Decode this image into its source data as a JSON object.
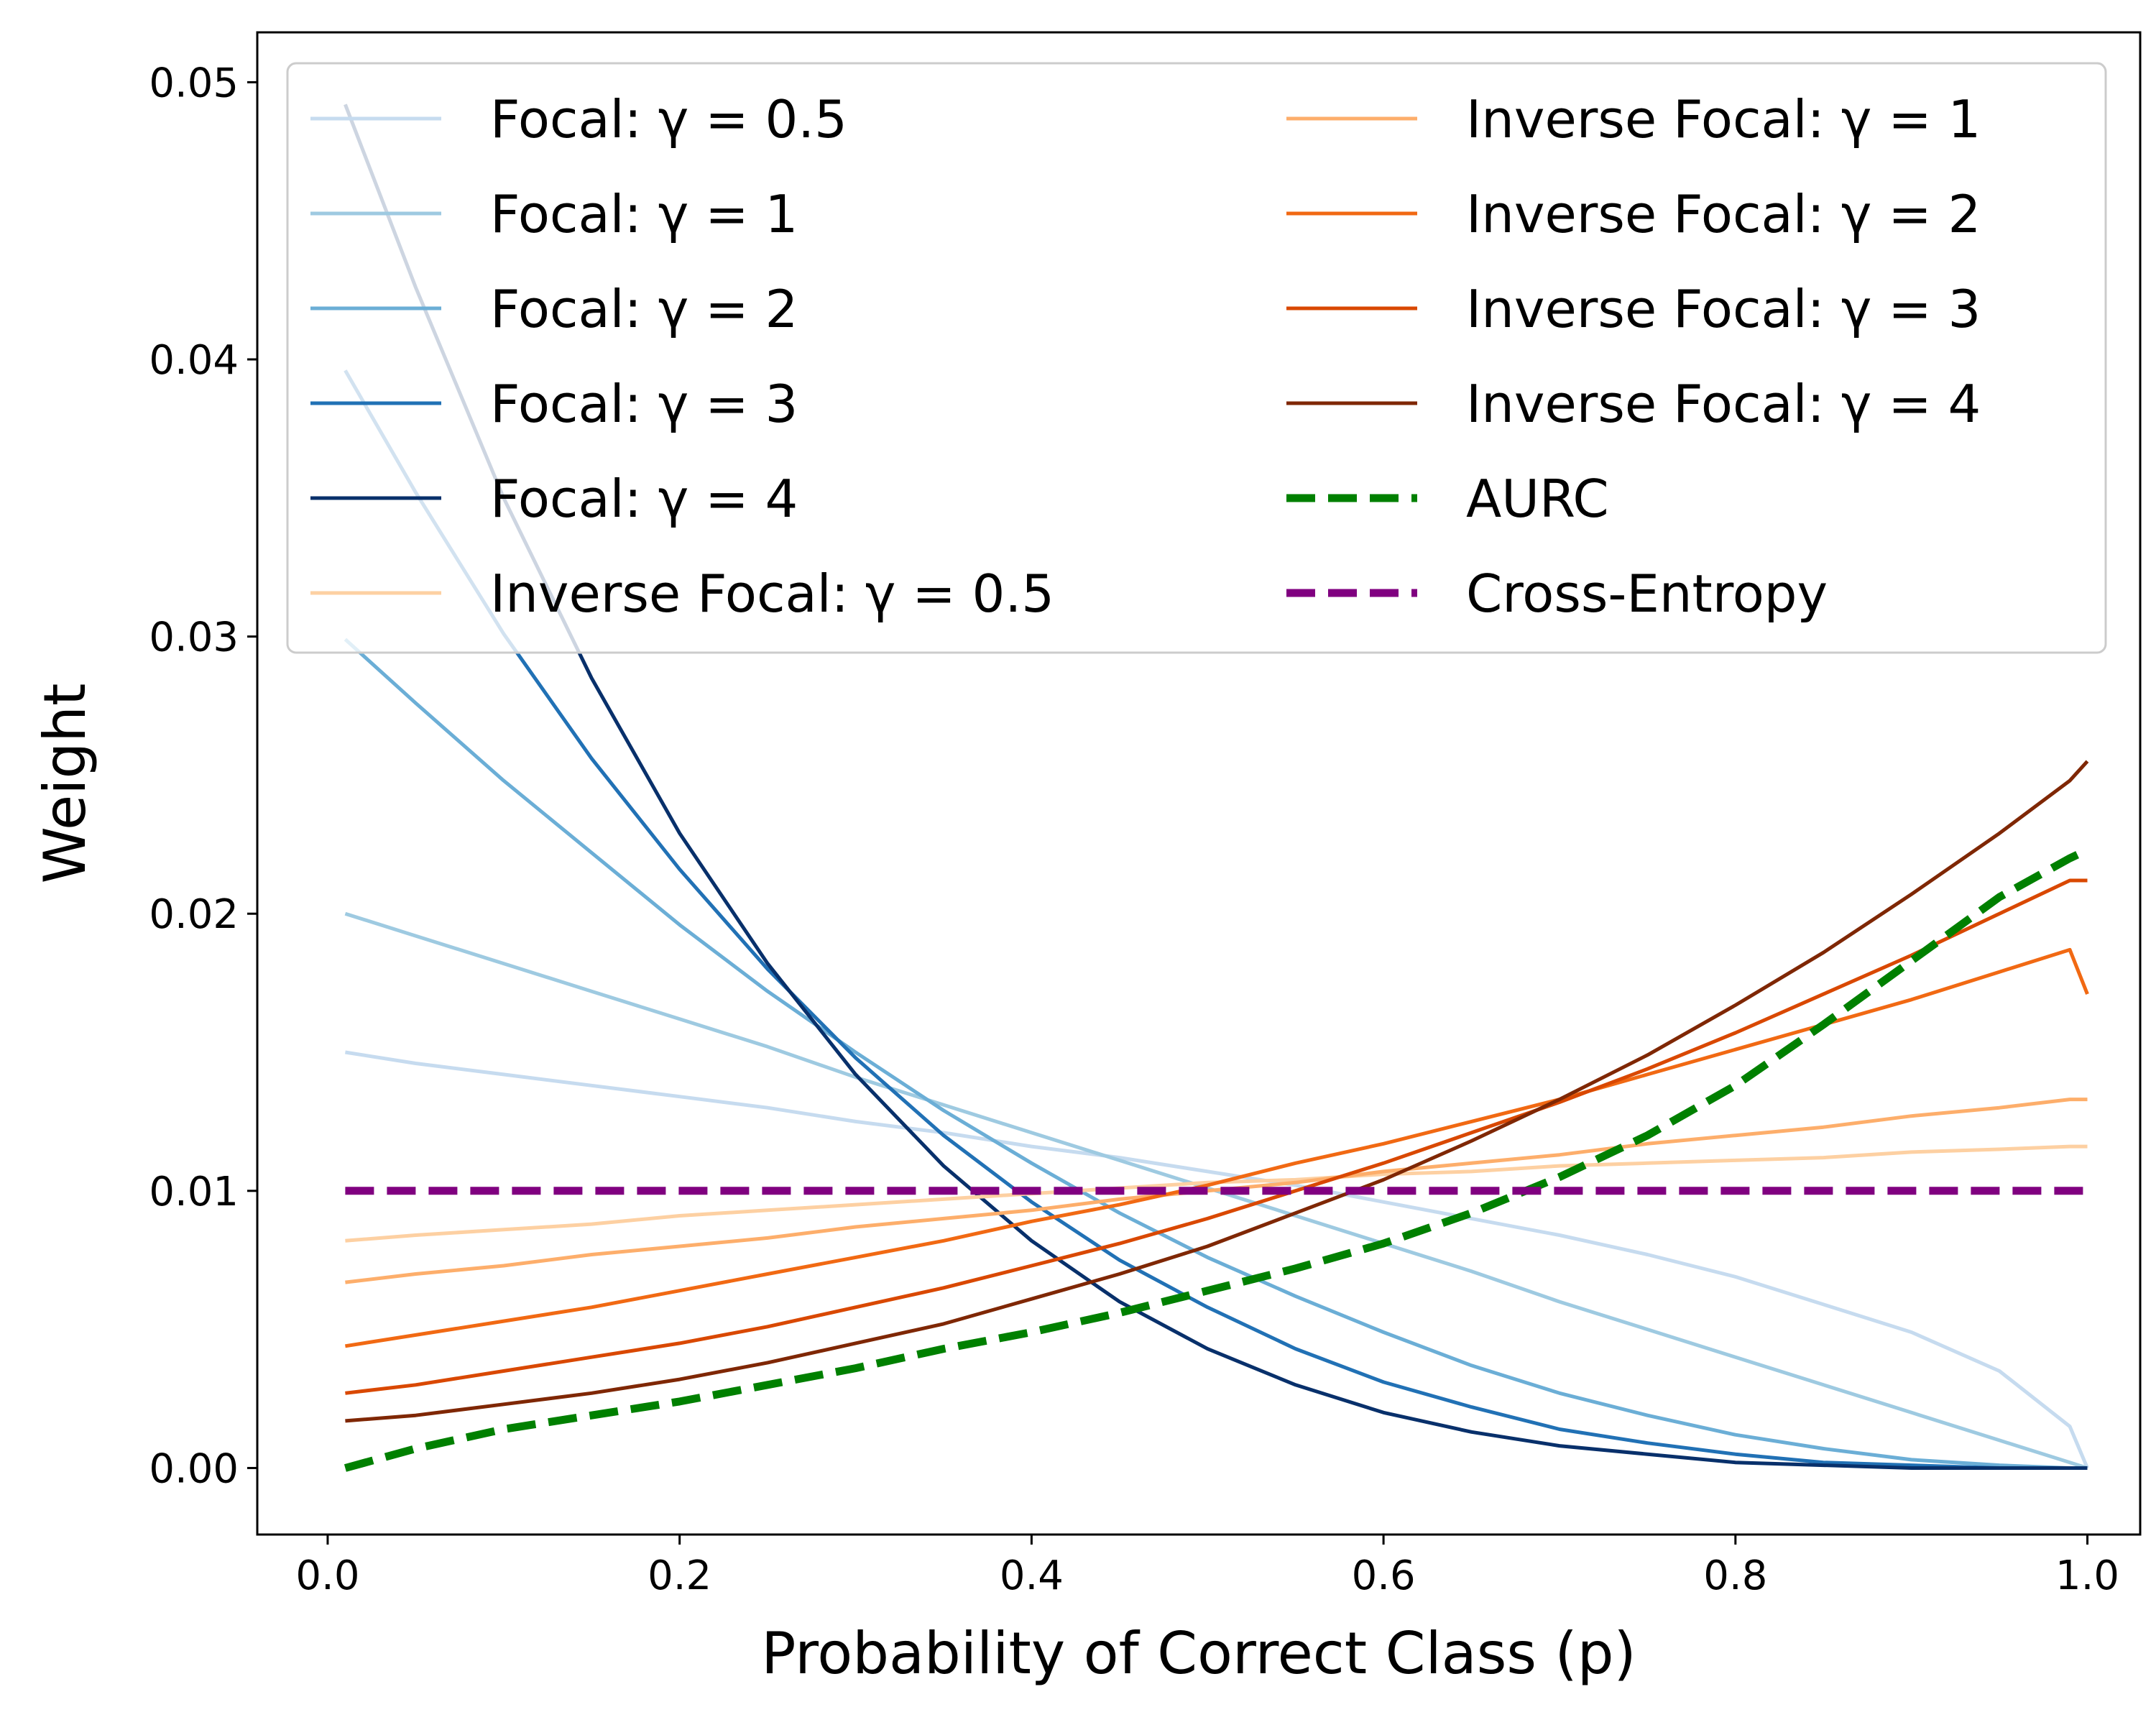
{
  "chart_data": {
    "type": "line",
    "title": "",
    "xlabel": "Probability of Correct Class (p)",
    "ylabel": "Weight",
    "xlim": [
      -0.04,
      1.03
    ],
    "ylim": [
      -0.0024,
      0.0518
    ],
    "x": [
      0.01,
      0.05,
      0.1,
      0.15,
      0.2,
      0.25,
      0.3,
      0.35,
      0.4,
      0.45,
      0.5,
      0.55,
      0.6,
      0.65,
      0.7,
      0.75,
      0.8,
      0.85,
      0.9,
      0.95,
      0.99,
      1.0
    ],
    "xticks": [
      0.0,
      0.2,
      0.4,
      0.6,
      0.8,
      1.0
    ],
    "xtick_labels": [
      "0.0",
      "0.2",
      "0.4",
      "0.6",
      "0.8",
      "1.0"
    ],
    "yticks": [
      0.0,
      0.01,
      0.02,
      0.03,
      0.04,
      0.05
    ],
    "ytick_labels": [
      "0.00",
      "0.01",
      "0.02",
      "0.03",
      "0.04",
      "0.05"
    ],
    "grid": false,
    "legend_position": "top",
    "series": [
      {
        "name": "Focal: γ = 0.5",
        "color": "#c6dbef",
        "dashed": false,
        "values": [
          0.015,
          0.0146,
          0.0142,
          0.0138,
          0.0134,
          0.013,
          0.0125,
          0.0121,
          0.0116,
          0.0112,
          0.0107,
          0.0102,
          0.0096,
          0.009,
          0.0084,
          0.0077,
          0.0069,
          0.0059,
          0.0049,
          0.0035,
          0.0015,
          0.0
        ]
      },
      {
        "name": "Focal: γ = 1",
        "color": "#9ecae1",
        "dashed": false,
        "values": [
          0.02,
          0.0192,
          0.0182,
          0.0172,
          0.0162,
          0.0152,
          0.0141,
          0.0131,
          0.0121,
          0.0111,
          0.0101,
          0.0091,
          0.0081,
          0.0071,
          0.006,
          0.005,
          0.004,
          0.003,
          0.002,
          0.001,
          0.0002,
          0.0
        ]
      },
      {
        "name": "Focal: γ = 2",
        "color": "#6baed6",
        "dashed": false,
        "values": [
          0.0299,
          0.0276,
          0.0248,
          0.0222,
          0.0196,
          0.0172,
          0.015,
          0.0129,
          0.011,
          0.0092,
          0.0076,
          0.0062,
          0.0049,
          0.0037,
          0.0027,
          0.0019,
          0.0012,
          0.0007,
          0.0003,
          0.0001,
          0.0,
          0.0
        ]
      },
      {
        "name": "Focal: γ = 3",
        "color": "#2171b5",
        "dashed": false,
        "values": [
          0.0396,
          0.0352,
          0.0301,
          0.0256,
          0.0216,
          0.018,
          0.0148,
          0.012,
          0.0096,
          0.0075,
          0.0058,
          0.0043,
          0.0031,
          0.0022,
          0.0014,
          0.0009,
          0.0005,
          0.0002,
          0.0001,
          0.0,
          0.0,
          0.0
        ]
      },
      {
        "name": "Focal: γ = 4",
        "color": "#08306b",
        "dashed": false,
        "values": [
          0.0492,
          0.0426,
          0.035,
          0.0285,
          0.0229,
          0.0182,
          0.0142,
          0.0109,
          0.0082,
          0.006,
          0.0043,
          0.003,
          0.002,
          0.0013,
          0.0008,
          0.0005,
          0.0002,
          0.0001,
          0.0,
          0.0,
          0.0,
          0.0
        ]
      },
      {
        "name": "Inverse Focal: γ = 0.5",
        "color": "#fdd0a2",
        "dashed": false,
        "values": [
          0.0082,
          0.0084,
          0.0086,
          0.0088,
          0.0091,
          0.0093,
          0.0095,
          0.0097,
          0.0099,
          0.0101,
          0.0103,
          0.0104,
          0.0106,
          0.0107,
          0.0109,
          0.011,
          0.0111,
          0.0112,
          0.0114,
          0.0115,
          0.0116,
          0.0116
        ]
      },
      {
        "name": "Inverse Focal: γ = 1",
        "color": "#fdae6b",
        "dashed": false,
        "values": [
          0.0067,
          0.007,
          0.0073,
          0.0077,
          0.008,
          0.0083,
          0.0087,
          0.009,
          0.0093,
          0.0097,
          0.01,
          0.0103,
          0.0107,
          0.011,
          0.0113,
          0.0117,
          0.012,
          0.0123,
          0.0127,
          0.013,
          0.0133,
          0.0133
        ]
      },
      {
        "name": "Inverse Focal: γ = 2",
        "color": "#f16913",
        "dashed": false,
        "values": [
          0.0044,
          0.0048,
          0.0053,
          0.0058,
          0.0064,
          0.007,
          0.0076,
          0.0082,
          0.0089,
          0.0095,
          0.0102,
          0.011,
          0.0117,
          0.0125,
          0.0133,
          0.0142,
          0.0151,
          0.016,
          0.0169,
          0.0179,
          0.0187,
          0.0171
        ]
      },
      {
        "name": "Inverse Focal: γ = 3",
        "color": "#d94801",
        "dashed": false,
        "values": [
          0.0027,
          0.003,
          0.0035,
          0.004,
          0.0045,
          0.0051,
          0.0058,
          0.0065,
          0.0073,
          0.0081,
          0.009,
          0.01,
          0.011,
          0.0121,
          0.0132,
          0.0144,
          0.0157,
          0.0171,
          0.0185,
          0.02,
          0.0212,
          0.0212
        ]
      },
      {
        "name": "Inverse Focal: γ = 4",
        "color": "#7f2704",
        "dashed": false,
        "values": [
          0.0017,
          0.0019,
          0.0023,
          0.0027,
          0.0032,
          0.0038,
          0.0045,
          0.0052,
          0.0061,
          0.007,
          0.008,
          0.0092,
          0.0104,
          0.0118,
          0.0133,
          0.0149,
          0.0167,
          0.0186,
          0.0207,
          0.0229,
          0.0248,
          0.0255
        ]
      },
      {
        "name": "AURC",
        "color": "#008000",
        "dashed": true,
        "values": [
          0.0,
          0.0007,
          0.0014,
          0.0019,
          0.0024,
          0.003,
          0.0036,
          0.0043,
          0.0049,
          0.0056,
          0.0064,
          0.0072,
          0.0081,
          0.0092,
          0.0105,
          0.012,
          0.0138,
          0.016,
          0.0183,
          0.0206,
          0.022,
          0.0223
        ]
      },
      {
        "name": "Cross-Entropy",
        "color": "#800080",
        "dashed": true,
        "values": [
          0.01,
          0.01,
          0.01,
          0.01,
          0.01,
          0.01,
          0.01,
          0.01,
          0.01,
          0.01,
          0.01,
          0.01,
          0.01,
          0.01,
          0.01,
          0.01,
          0.01,
          0.01,
          0.01,
          0.01,
          0.01,
          0.01
        ]
      }
    ]
  }
}
